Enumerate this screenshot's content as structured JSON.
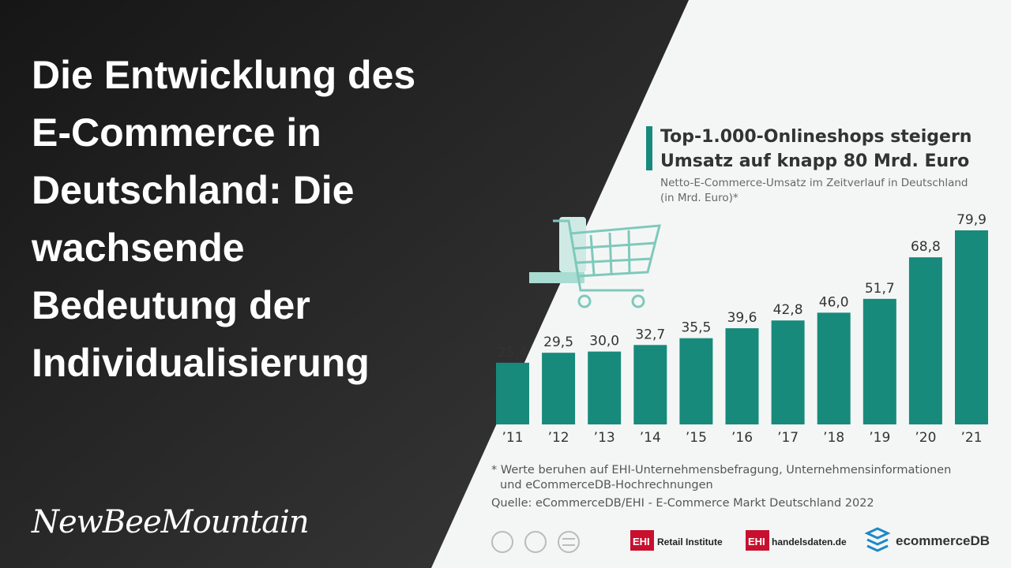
{
  "headline": [
    "Die Entwicklung des",
    "E-Commerce in",
    "Deutschland: Die",
    "wachsende",
    "Bedeutung der",
    "Individualisierung"
  ],
  "brand": "NewBeeMountain",
  "chart_data": {
    "type": "bar",
    "title": [
      "Top-1.000-Onlineshops steigern",
      "Umsatz auf knapp 80 Mrd. Euro"
    ],
    "subtitle": [
      "Netto-E-Commerce-Umsatz im Zeitverlauf in Deutschland",
      "(in Mrd. Euro)*"
    ],
    "categories": [
      "’11",
      "’12",
      "’13",
      "’14",
      "’15",
      "’16",
      "’17",
      "’18",
      "’19",
      "’20",
      "’21"
    ],
    "values": [
      25.4,
      29.5,
      30.0,
      32.7,
      35.5,
      39.6,
      42.8,
      46.0,
      51.7,
      68.8,
      79.9
    ],
    "value_labels": [
      "25,4",
      "29,5",
      "30,0",
      "32,7",
      "35,5",
      "39,6",
      "42,8",
      "46,0",
      "51,7",
      "68,8",
      "79,9"
    ],
    "color": "#178a7b",
    "footnote": [
      "* Werte beruhen auf EHI-Unternehmensbefragung, Unternehmensinformationen",
      "und eCommerceDB-Hochrechnungen"
    ],
    "source": "Quelle: eCommerceDB/EHI - E-Commerce Markt Deutschland 2022"
  },
  "logos": [
    "EHI",
    "Retail Institute",
    "EHI",
    "handelsdaten.de",
    "ecommerceDB"
  ]
}
